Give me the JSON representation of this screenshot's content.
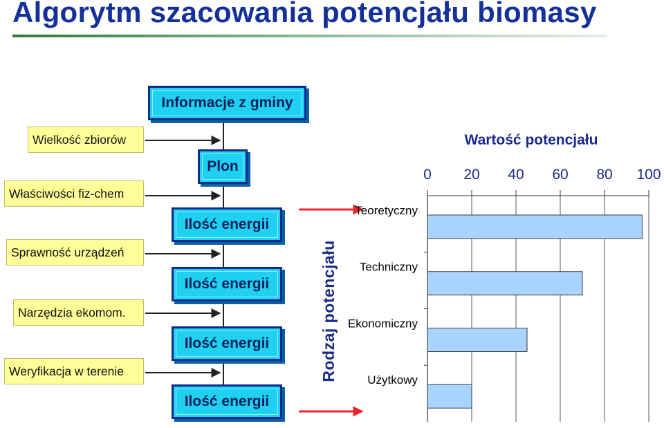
{
  "title": "Algorytm szacowania potencjału biomasy",
  "flow": {
    "start": "Informacje z gminy",
    "yield": "Plon",
    "energy_steps": [
      "Ilość energii",
      "Ilość energii",
      "Ilość energii",
      "Ilość energii"
    ],
    "inputs": [
      "Wielkość zbiorów",
      "Właściwości fiz-chem",
      "Sprawność urządzeń",
      "Narzędzia ekomom.",
      "Weryfikacja w terenie"
    ]
  },
  "colors": {
    "box_fill": "#1fd0f0",
    "box_border": "#0a2d8c",
    "input_fill": "#ffff99",
    "bar_fill": "#a8d4ff",
    "arrow": "#e8262c"
  },
  "chart_data": {
    "type": "bar",
    "orientation": "horizontal",
    "title": "Wartość potencjału",
    "ylabel": "Rodzaj potencjału",
    "xlabel": "",
    "categories": [
      "Teoretyczny",
      "Techniczny",
      "Ekonomiczny",
      "Użytkowy"
    ],
    "values": [
      97,
      70,
      45,
      20
    ],
    "xlim": [
      0,
      100
    ],
    "xticks": [
      "0",
      "20",
      "40",
      "60",
      "80",
      "100"
    ],
    "grid": true
  }
}
